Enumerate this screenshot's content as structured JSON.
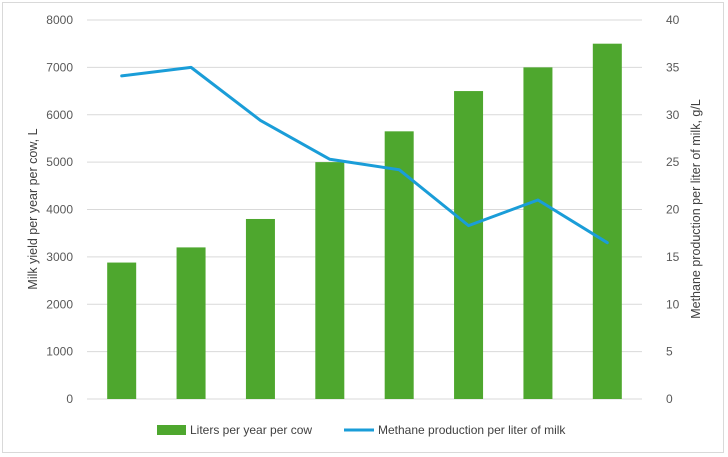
{
  "chart_data": {
    "type": "bar",
    "title": "",
    "xlabel": "",
    "ylabel": "Milk yield per year per cow, L",
    "y2label": "Methane production per liter of milk, g/L",
    "ylim": [
      0,
      8000
    ],
    "y2lim": [
      0,
      40
    ],
    "yticks": [
      "0",
      "1000",
      "2000",
      "3000",
      "4000",
      "5000",
      "6000",
      "7000",
      "8000"
    ],
    "y2ticks": [
      "0",
      "5",
      "10",
      "15",
      "20",
      "25",
      "30",
      "35",
      "40"
    ],
    "grid": true,
    "legend_position": "bottom",
    "series": [
      {
        "name": "Liters per year per cow",
        "type": "bar",
        "axis": "left",
        "color": "#4ea72e",
        "values": [
          2880,
          3200,
          3800,
          5000,
          5650,
          6500,
          7000,
          7500
        ]
      },
      {
        "name": "Methane production per liter of milk",
        "type": "line",
        "axis": "right",
        "color": "#1a9dd8",
        "values": [
          34.1,
          35.0,
          29.4,
          25.3,
          24.2,
          18.3,
          21.0,
          16.5
        ]
      }
    ]
  }
}
